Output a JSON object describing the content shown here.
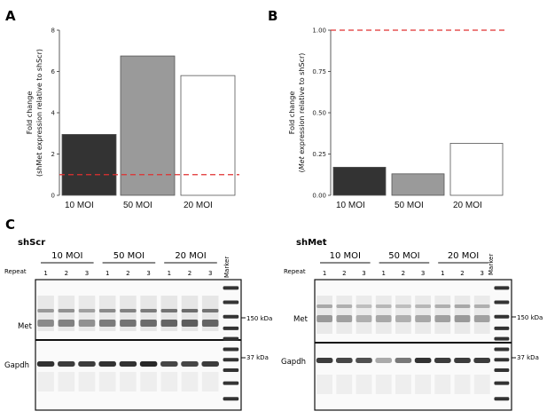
{
  "panels": {
    "a": "A",
    "b": "B",
    "c": "C"
  },
  "chart_data": [
    {
      "type": "bar",
      "categories": [
        "10 MOI",
        "50 MOI",
        "20 MOI"
      ],
      "values": [
        2.95,
        6.75,
        5.8
      ],
      "ylabel_line1": "Fold change",
      "ylabel_line2": "(shMet expression relative to shScr)",
      "ylim": [
        0,
        8
      ],
      "yticks": [
        "0",
        "2",
        "4",
        "6",
        "8"
      ],
      "reference_line": 1.0,
      "reference_color": "#e03030",
      "bar_colors": [
        "#333333",
        "#9a9a9a",
        "#ffffff"
      ]
    },
    {
      "type": "bar",
      "categories": [
        "10 MOI",
        "50 MOI",
        "20 MOI"
      ],
      "values": [
        0.17,
        0.13,
        0.315
      ],
      "ylabel_line1": "Fold change",
      "ylabel_line2": "(Met expression relative to shScr)",
      "ylim": [
        0,
        1.0
      ],
      "yticks": [
        "0.00",
        "0.25",
        "0.50",
        "0.75",
        "1.00"
      ],
      "reference_line": 1.0,
      "reference_color": "#e03030",
      "bar_colors": [
        "#333333",
        "#9a9a9a",
        "#ffffff"
      ]
    }
  ],
  "blots": [
    {
      "title": "shScr",
      "moi_labels": [
        "10 MOI",
        "50 MOI",
        "20 MOI"
      ],
      "repeat_label": "Repeat",
      "lane_numbers": [
        "1",
        "2",
        "3",
        "1",
        "2",
        "3",
        "1",
        "2",
        "3"
      ],
      "marker_label": "Marker",
      "row_labels": [
        "Met",
        "Gapdh"
      ],
      "kda_labels": [
        "150 kDa",
        "37 kDa"
      ],
      "met_band": [
        0.55,
        0.6,
        0.5,
        0.65,
        0.7,
        0.75,
        0.8,
        0.85,
        0.8
      ],
      "gapdh_band": [
        0.9,
        0.85,
        0.85,
        0.9,
        0.9,
        0.95,
        0.8,
        0.8,
        0.85
      ]
    },
    {
      "title": "shMet",
      "moi_labels": [
        "10 MOI",
        "50 MOI",
        "20 MOI"
      ],
      "repeat_label": "Repeat",
      "lane_numbers": [
        "1",
        "2",
        "3",
        "1",
        "2",
        "3",
        "1",
        "2",
        "3"
      ],
      "marker_label": "Marker",
      "row_labels": [
        "Met",
        "Gapdh"
      ],
      "kda_labels": [
        "150 kDa",
        "37 kDa"
      ],
      "met_band": [
        0.45,
        0.4,
        0.3,
        0.35,
        0.3,
        0.35,
        0.4,
        0.45,
        0.4
      ],
      "gapdh_band": [
        0.85,
        0.8,
        0.75,
        0.3,
        0.55,
        0.9,
        0.85,
        0.85,
        0.85
      ]
    }
  ]
}
